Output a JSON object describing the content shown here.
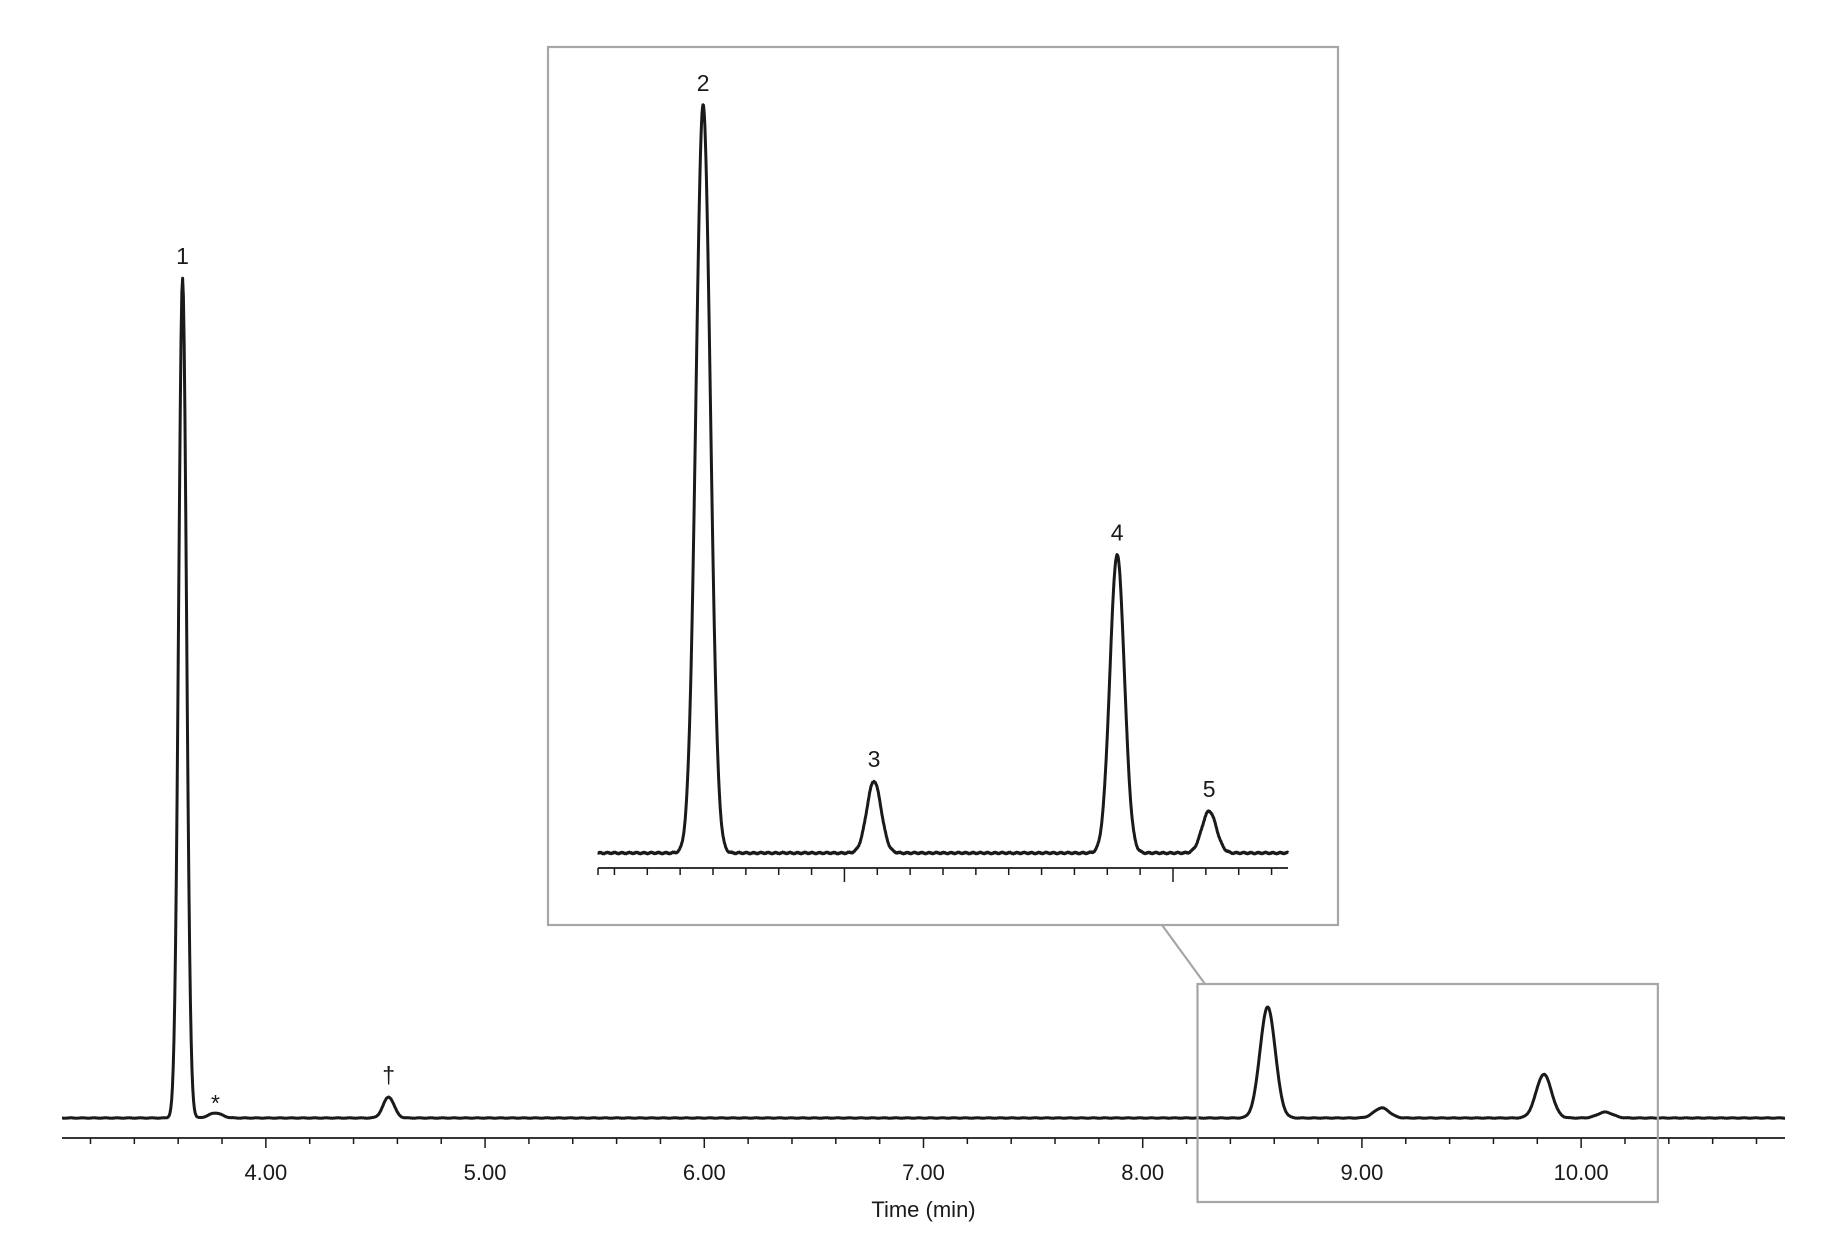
{
  "chart_data": {
    "type": "line",
    "title": "",
    "xlabel": "Time (min)",
    "ylabel": "",
    "xlim": [
      3.07,
      10.93
    ],
    "ylim": [
      0,
      1.0
    ],
    "x_ticks_major": [
      "4.00",
      "5.00",
      "6.00",
      "7.00",
      "8.00",
      "9.00",
      "10.00"
    ],
    "grid": false,
    "series": [
      {
        "peaks": [
          {
            "label": "1",
            "rt": 3.62,
            "height": 1.0,
            "width": 0.018
          },
          {
            "label": "*",
            "rt": 3.77,
            "height": 0.006,
            "width": 0.03
          },
          {
            "label": "†",
            "rt": 4.56,
            "height": 0.025,
            "width": 0.025
          },
          {
            "label": "",
            "rt": 8.57,
            "height": 0.132,
            "width": 0.035
          },
          {
            "label": "",
            "rt": 9.09,
            "height": 0.012,
            "width": 0.035
          },
          {
            "label": "",
            "rt": 9.83,
            "height": 0.052,
            "width": 0.035
          },
          {
            "label": "",
            "rt": 10.11,
            "height": 0.007,
            "width": 0.035
          }
        ]
      }
    ],
    "zoom_region": {
      "x": [
        8.25,
        10.35
      ]
    },
    "inset": {
      "xlim": [
        8.25,
        10.35
      ],
      "peaks": [
        {
          "label": "2",
          "rt": 8.57,
          "height": 1.0
        },
        {
          "label": "3",
          "rt": 9.09,
          "height": 0.096
        },
        {
          "label": "4",
          "rt": 9.83,
          "height": 0.399
        },
        {
          "label": "5",
          "rt": 10.11,
          "height": 0.056
        }
      ]
    }
  }
}
